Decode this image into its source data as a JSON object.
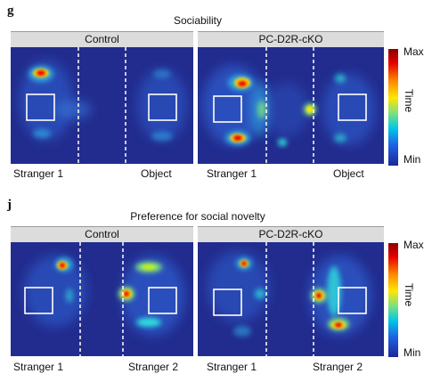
{
  "panels": [
    {
      "letter": "g",
      "title": "Sociability",
      "groups": [
        "Control",
        "PC-D2R-cKO"
      ],
      "chamber_labels": {
        "control": {
          "left": "Stranger 1",
          "right": "Object"
        },
        "cko": {
          "left": "Stranger 1",
          "right": "Object"
        }
      },
      "colorbar": {
        "max": "Max",
        "axis": "Time",
        "min": "Min"
      }
    },
    {
      "letter": "j",
      "title": "Preference for social novelty",
      "groups": [
        "Control",
        "PC-D2R-cKO"
      ],
      "chamber_labels": {
        "control": {
          "left": "Stranger 1",
          "right": "Stranger 2"
        },
        "cko": {
          "left": "Stranger 1",
          "right": "Stranger 2"
        }
      },
      "colorbar": {
        "max": "Max",
        "axis": "Time",
        "min": "Min"
      }
    }
  ],
  "colors": {
    "background": "#222c8e",
    "header": "#dcdcdc",
    "cage_outline": "#ffffff",
    "divider": "#ffffff"
  }
}
